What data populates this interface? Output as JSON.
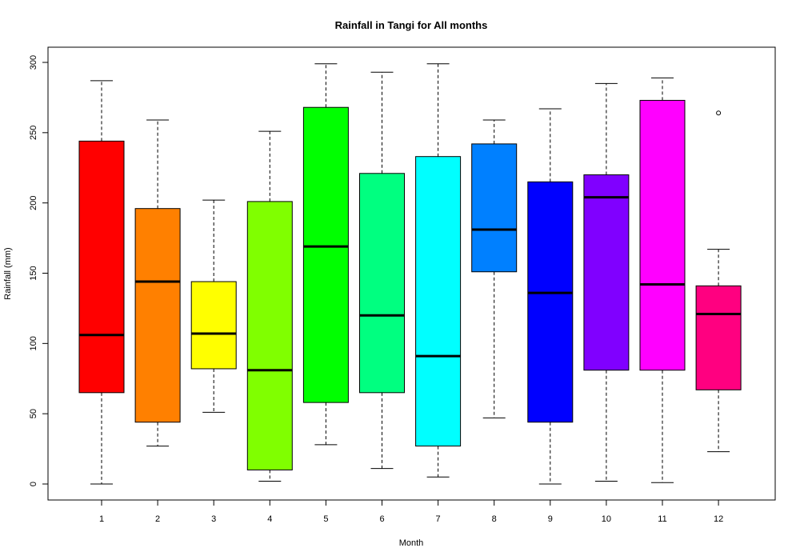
{
  "chart_data": {
    "type": "boxplot",
    "title": "Rainfall in Tangi for All months",
    "xlabel": "Month",
    "ylabel": "Rainfall (mm)",
    "ylim": [
      -12,
      312
    ],
    "yticks": [
      0,
      50,
      100,
      150,
      200,
      250,
      300
    ],
    "grid": false,
    "legend": "none",
    "categories": [
      "1",
      "2",
      "3",
      "4",
      "5",
      "6",
      "7",
      "8",
      "9",
      "10",
      "11",
      "12"
    ],
    "boxes": [
      {
        "category": "1",
        "whisker_low": 0,
        "q1": 65,
        "median": 106,
        "q3": 244,
        "whisker_high": 287,
        "outliers": [],
        "color": "#FF0000"
      },
      {
        "category": "2",
        "whisker_low": 27,
        "q1": 44,
        "median": 144,
        "q3": 196,
        "whisker_high": 259,
        "outliers": [],
        "color": "#FF8000"
      },
      {
        "category": "3",
        "whisker_low": 51,
        "q1": 82,
        "median": 107,
        "q3": 144,
        "whisker_high": 202,
        "outliers": [],
        "color": "#FFFF00"
      },
      {
        "category": "4",
        "whisker_low": 2,
        "q1": 10,
        "median": 81,
        "q3": 201,
        "whisker_high": 251,
        "outliers": [],
        "color": "#80FF00"
      },
      {
        "category": "5",
        "whisker_low": 28,
        "q1": 58,
        "median": 169,
        "q3": 268,
        "whisker_high": 299,
        "outliers": [],
        "color": "#00FF00"
      },
      {
        "category": "6",
        "whisker_low": 11,
        "q1": 65,
        "median": 120,
        "q3": 221,
        "whisker_high": 293,
        "outliers": [],
        "color": "#00FF80"
      },
      {
        "category": "7",
        "whisker_low": 5,
        "q1": 27,
        "median": 91,
        "q3": 233,
        "whisker_high": 299,
        "outliers": [],
        "color": "#00FFFF"
      },
      {
        "category": "8",
        "whisker_low": 47,
        "q1": 151,
        "median": 181,
        "q3": 242,
        "whisker_high": 259,
        "outliers": [],
        "color": "#0080FF"
      },
      {
        "category": "9",
        "whisker_low": 0,
        "q1": 44,
        "median": 136,
        "q3": 215,
        "whisker_high": 267,
        "outliers": [],
        "color": "#0000FF"
      },
      {
        "category": "10",
        "whisker_low": 2,
        "q1": 81,
        "median": 204,
        "q3": 220,
        "whisker_high": 285,
        "outliers": [],
        "color": "#8000FF"
      },
      {
        "category": "11",
        "whisker_low": 1,
        "q1": 81,
        "median": 142,
        "q3": 273,
        "whisker_high": 289,
        "outliers": [],
        "color": "#FF00FF"
      },
      {
        "category": "12",
        "whisker_low": 23,
        "q1": 67,
        "median": 121,
        "q3": 141,
        "whisker_high": 167,
        "outliers": [
          264
        ],
        "color": "#FF0080"
      }
    ]
  }
}
